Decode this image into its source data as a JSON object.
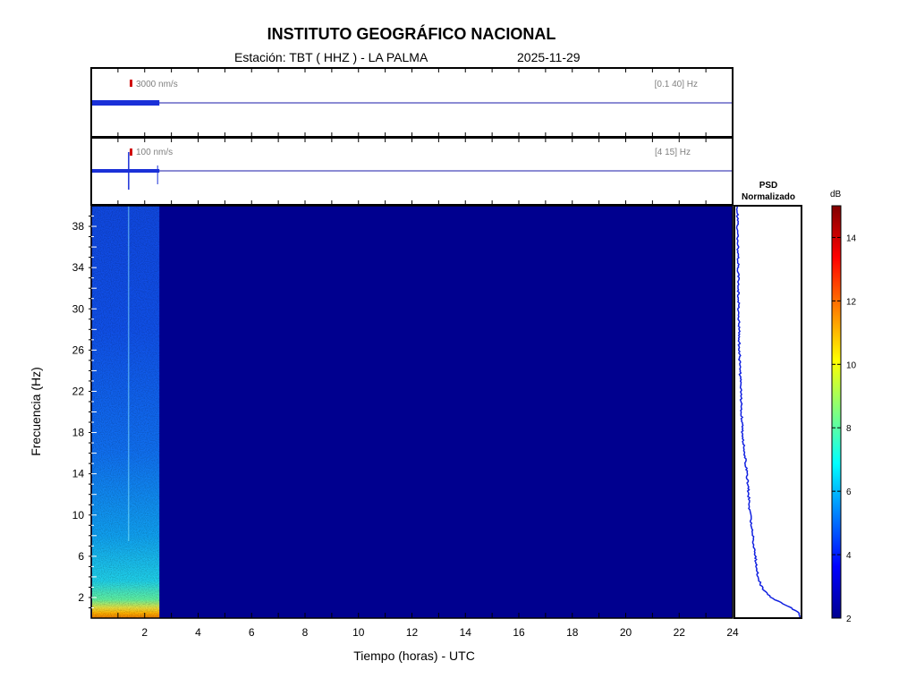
{
  "header": {
    "title": "INSTITUTO GEOGRÁFICO NACIONAL",
    "station_label": "Estación:  TBT ( HHZ ) - LA PALMA",
    "date": "2025-11-29"
  },
  "traces": [
    {
      "scale_label": "3000 nm/s",
      "band_label": "[0.1 40] Hz",
      "data_end_hours": 2.55
    },
    {
      "scale_label": "100 nm/s",
      "band_label": "[4 15] Hz",
      "data_end_hours": 2.55,
      "spike_hours": 1.4
    }
  ],
  "psd": {
    "title_line1": "PSD",
    "title_line2": "Normalizado"
  },
  "colorbar": {
    "unit": "dB",
    "min": 2,
    "max": 15,
    "ticks": [
      2,
      4,
      6,
      8,
      10,
      12,
      14
    ]
  },
  "chart_data": {
    "type": "heatmap",
    "xlabel": "Tiempo (horas) - UTC",
    "ylabel": "Frecuencia  (Hz)",
    "xlim": [
      0,
      24
    ],
    "ylim": [
      0,
      40
    ],
    "xticks": [
      2,
      4,
      6,
      8,
      10,
      12,
      14,
      16,
      18,
      20,
      22,
      24
    ],
    "yticks": [
      2,
      6,
      10,
      14,
      18,
      22,
      26,
      30,
      34,
      38
    ],
    "data_end_hours": 2.55,
    "background_color": "#00008f",
    "psd_profile": {
      "freq": [
        0.5,
        1,
        2,
        3,
        4,
        6,
        8,
        10,
        14,
        18,
        22,
        26,
        30,
        34,
        38,
        40
      ],
      "value": [
        1.0,
        0.86,
        0.55,
        0.4,
        0.34,
        0.3,
        0.26,
        0.22,
        0.17,
        0.1,
        0.07,
        0.05,
        0.04,
        0.03,
        0.02,
        0.02
      ]
    }
  }
}
